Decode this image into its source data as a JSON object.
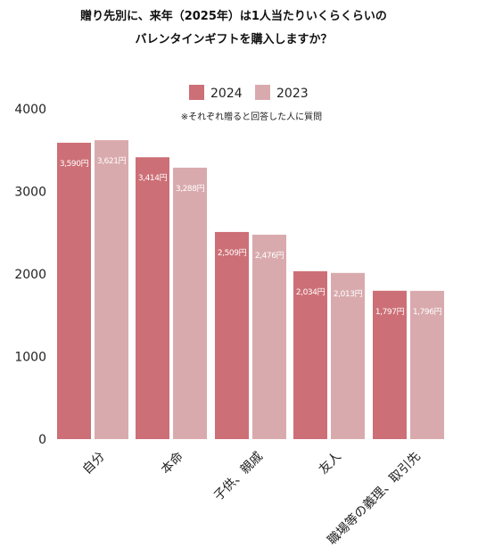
{
  "chart_data": {
    "type": "bar",
    "title_line1": "贈り先別に、来年（2025年）は1人当たりいくらくらいの",
    "title_line2": "バレンタインギフトを購入しますか？",
    "note": "※それぞれ贈ると回答した人に質問",
    "categories": [
      "自分",
      "本命",
      "子供、親戚",
      "友人",
      "職場等の義理、取引先"
    ],
    "series": [
      {
        "name": "2024",
        "color": "#cd6f76",
        "values": [
          3590,
          3414,
          2509,
          2034,
          1797
        ],
        "labels": [
          "3,590円",
          "3,414円",
          "2,509円",
          "2,034円",
          "1,797円"
        ]
      },
      {
        "name": "2023",
        "color": "#d9aaad",
        "values": [
          3621,
          3288,
          2476,
          2013,
          1796
        ],
        "labels": [
          "3,621円",
          "3,288円",
          "2,476円",
          "2,013円",
          "1,796円"
        ]
      }
    ],
    "yticks": [
      "0",
      "1000",
      "2000",
      "3000",
      "4000"
    ],
    "ylim": [
      0,
      4000
    ],
    "grid": false,
    "legend_position": "top-center"
  }
}
